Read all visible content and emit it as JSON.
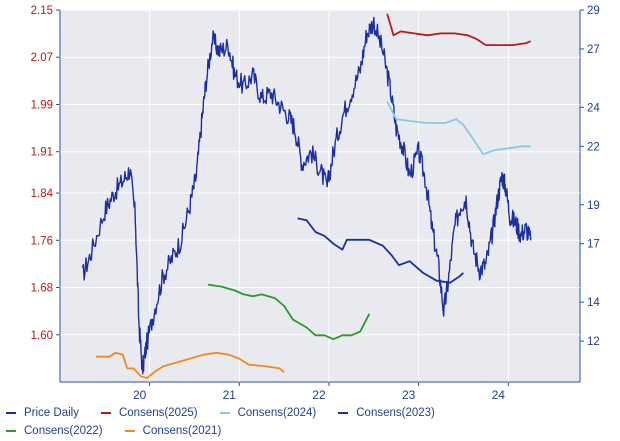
{
  "colors": {
    "plot_bg": "#e8eaf0",
    "gridline": "#ffffff",
    "axis_left_text": "#b01a1a",
    "axis_right_text": "#1f3f8f",
    "axis_bottom_text": "#1f3f8f",
    "frame": "#2d4fa3"
  },
  "chart_data": {
    "type": "line",
    "title": "",
    "xlabel": "",
    "ylabel": "",
    "x_range": [
      2019.0,
      2024.8
    ],
    "x_ticks": [
      {
        "value": 2020.0,
        "label": "20"
      },
      {
        "value": 2021.0,
        "label": "21"
      },
      {
        "value": 2022.0,
        "label": "22"
      },
      {
        "value": 2023.0,
        "label": "23"
      },
      {
        "value": 2024.0,
        "label": "24"
      }
    ],
    "y_left": {
      "range": [
        1.52,
        2.15
      ],
      "ticks": [
        {
          "value": 2.15,
          "label": "2.15"
        },
        {
          "value": 2.07,
          "label": "2.07"
        },
        {
          "value": 1.99,
          "label": "1.99"
        },
        {
          "value": 1.91,
          "label": "1.91"
        },
        {
          "value": 1.84,
          "label": "1.84"
        },
        {
          "value": 1.76,
          "label": "1.76"
        },
        {
          "value": 1.68,
          "label": "1.68"
        },
        {
          "value": 1.6,
          "label": "1.60"
        }
      ]
    },
    "y_right": {
      "range": [
        9.9,
        29.0
      ],
      "ticks": [
        {
          "value": 29,
          "label": "29"
        },
        {
          "value": 27,
          "label": "27"
        },
        {
          "value": 24,
          "label": "24"
        },
        {
          "value": 22,
          "label": "22"
        },
        {
          "value": 19,
          "label": "19"
        },
        {
          "value": 17,
          "label": "17"
        },
        {
          "value": 14,
          "label": "14"
        },
        {
          "value": 12,
          "label": "12"
        }
      ]
    },
    "grid": true,
    "legend_position": "bottom",
    "series": [
      {
        "name": "Price Daily",
        "axis": "left",
        "color": "#1c2fa0",
        "noise": true,
        "points": [
          [
            2019.25,
            1.7
          ],
          [
            2019.35,
            1.74
          ],
          [
            2019.5,
            1.81
          ],
          [
            2019.6,
            1.84
          ],
          [
            2019.7,
            1.86
          ],
          [
            2019.78,
            1.88
          ],
          [
            2019.84,
            1.8
          ],
          [
            2019.88,
            1.62
          ],
          [
            2019.92,
            1.54
          ],
          [
            2019.96,
            1.58
          ],
          [
            2020.05,
            1.64
          ],
          [
            2020.15,
            1.7
          ],
          [
            2020.25,
            1.73
          ],
          [
            2020.35,
            1.76
          ],
          [
            2020.45,
            1.82
          ],
          [
            2020.52,
            1.87
          ],
          [
            2020.58,
            1.96
          ],
          [
            2020.63,
            2.03
          ],
          [
            2020.7,
            2.1
          ],
          [
            2020.78,
            2.08
          ],
          [
            2020.88,
            2.09
          ],
          [
            2020.95,
            2.04
          ],
          [
            2021.05,
            2.02
          ],
          [
            2021.15,
            2.04
          ],
          [
            2021.25,
            2.0
          ],
          [
            2021.35,
            2.01
          ],
          [
            2021.45,
            1.99
          ],
          [
            2021.55,
            1.97
          ],
          [
            2021.62,
            1.95
          ],
          [
            2021.7,
            1.89
          ],
          [
            2021.8,
            1.91
          ],
          [
            2021.9,
            1.88
          ],
          [
            2021.98,
            1.85
          ],
          [
            2022.05,
            1.91
          ],
          [
            2022.15,
            1.97
          ],
          [
            2022.25,
            2.01
          ],
          [
            2022.35,
            2.05
          ],
          [
            2022.42,
            2.11
          ],
          [
            2022.5,
            2.13
          ],
          [
            2022.6,
            2.08
          ],
          [
            2022.68,
            2.02
          ],
          [
            2022.75,
            1.95
          ],
          [
            2022.82,
            1.92
          ],
          [
            2022.9,
            1.87
          ],
          [
            2023.0,
            1.91
          ],
          [
            2023.08,
            1.86
          ],
          [
            2023.15,
            1.78
          ],
          [
            2023.22,
            1.72
          ],
          [
            2023.28,
            1.64
          ],
          [
            2023.33,
            1.69
          ],
          [
            2023.4,
            1.78
          ],
          [
            2023.47,
            1.82
          ],
          [
            2023.53,
            1.83
          ],
          [
            2023.6,
            1.75
          ],
          [
            2023.68,
            1.71
          ],
          [
            2023.75,
            1.72
          ],
          [
            2023.82,
            1.77
          ],
          [
            2023.88,
            1.83
          ],
          [
            2023.93,
            1.87
          ],
          [
            2023.97,
            1.85
          ],
          [
            2024.02,
            1.8
          ],
          [
            2024.08,
            1.79
          ],
          [
            2024.14,
            1.77
          ],
          [
            2024.2,
            1.78
          ],
          [
            2024.25,
            1.76
          ]
        ]
      },
      {
        "name": "Consens(2025)",
        "axis": "right",
        "color": "#b51c1c",
        "points": [
          [
            2022.65,
            28.8
          ],
          [
            2022.72,
            27.7
          ],
          [
            2022.8,
            27.9
          ],
          [
            2022.95,
            27.8
          ],
          [
            2023.1,
            27.7
          ],
          [
            2023.25,
            27.8
          ],
          [
            2023.4,
            27.8
          ],
          [
            2023.55,
            27.7
          ],
          [
            2023.65,
            27.5
          ],
          [
            2023.75,
            27.2
          ],
          [
            2024.05,
            27.2
          ],
          [
            2024.2,
            27.3
          ],
          [
            2024.25,
            27.4
          ]
        ]
      },
      {
        "name": "Consens(2024)",
        "axis": "right",
        "color": "#88cbe0",
        "points": [
          [
            2022.65,
            24.3
          ],
          [
            2022.75,
            23.4
          ],
          [
            2022.9,
            23.3
          ],
          [
            2023.1,
            23.2
          ],
          [
            2023.3,
            23.2
          ],
          [
            2023.42,
            23.4
          ],
          [
            2023.5,
            23.1
          ],
          [
            2023.62,
            22.3
          ],
          [
            2023.72,
            21.6
          ],
          [
            2023.85,
            21.8
          ],
          [
            2024.0,
            21.9
          ],
          [
            2024.15,
            22.0
          ],
          [
            2024.25,
            22.0
          ]
        ]
      },
      {
        "name": "Consens(2023)",
        "axis": "right",
        "color": "#1c2fa0",
        "points": [
          [
            2021.65,
            18.3
          ],
          [
            2021.75,
            18.2
          ],
          [
            2021.85,
            17.6
          ],
          [
            2021.95,
            17.4
          ],
          [
            2022.05,
            17.0
          ],
          [
            2022.15,
            16.7
          ],
          [
            2022.2,
            17.2
          ],
          [
            2022.45,
            17.2
          ],
          [
            2022.6,
            16.9
          ],
          [
            2022.7,
            16.4
          ],
          [
            2022.78,
            15.9
          ],
          [
            2022.9,
            16.1
          ],
          [
            2023.05,
            15.5
          ],
          [
            2023.2,
            15.1
          ],
          [
            2023.35,
            15.0
          ],
          [
            2023.45,
            15.3
          ],
          [
            2023.5,
            15.5
          ]
        ]
      },
      {
        "name": "Consens(2022)",
        "axis": "right",
        "color": "#2a9a2a",
        "points": [
          [
            2020.65,
            14.9
          ],
          [
            2020.8,
            14.8
          ],
          [
            2020.95,
            14.6
          ],
          [
            2021.05,
            14.4
          ],
          [
            2021.15,
            14.3
          ],
          [
            2021.25,
            14.4
          ],
          [
            2021.4,
            14.2
          ],
          [
            2021.5,
            13.8
          ],
          [
            2021.6,
            13.1
          ],
          [
            2021.75,
            12.7
          ],
          [
            2021.85,
            12.3
          ],
          [
            2021.95,
            12.3
          ],
          [
            2022.05,
            12.1
          ],
          [
            2022.15,
            12.3
          ],
          [
            2022.25,
            12.3
          ],
          [
            2022.35,
            12.5
          ],
          [
            2022.45,
            13.4
          ]
        ]
      },
      {
        "name": "Consens(2021)",
        "axis": "right",
        "color": "#ee8a20",
        "points": [
          [
            2019.4,
            11.2
          ],
          [
            2019.55,
            11.2
          ],
          [
            2019.62,
            11.4
          ],
          [
            2019.7,
            11.3
          ],
          [
            2019.75,
            10.6
          ],
          [
            2019.82,
            10.6
          ],
          [
            2019.9,
            10.2
          ],
          [
            2019.97,
            10.1
          ],
          [
            2020.05,
            10.4
          ],
          [
            2020.15,
            10.7
          ],
          [
            2020.3,
            10.9
          ],
          [
            2020.45,
            11.1
          ],
          [
            2020.6,
            11.3
          ],
          [
            2020.75,
            11.4
          ],
          [
            2020.88,
            11.3
          ],
          [
            2021.0,
            11.1
          ],
          [
            2021.1,
            10.8
          ],
          [
            2021.3,
            10.7
          ],
          [
            2021.45,
            10.6
          ],
          [
            2021.5,
            10.4
          ]
        ]
      }
    ]
  }
}
